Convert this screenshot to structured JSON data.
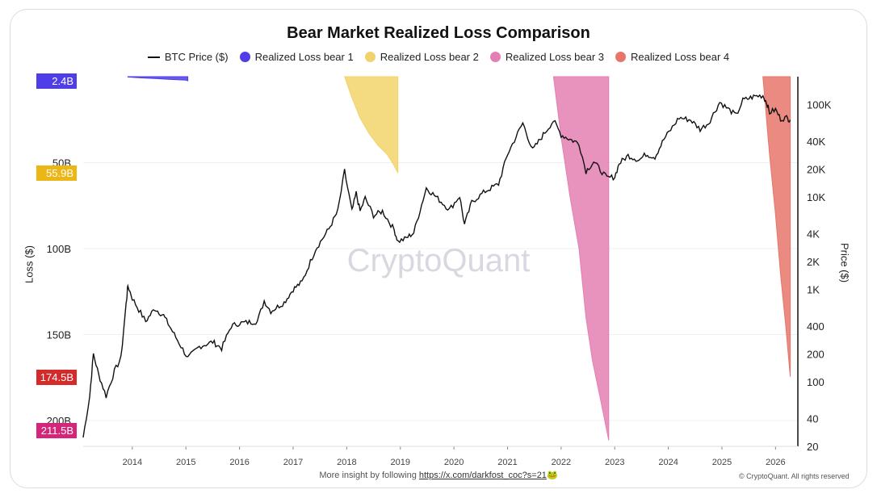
{
  "chart_data": {
    "type": "line",
    "title": "Bear Market Realized Loss Comparison",
    "legend": [
      "BTC Price ($)",
      "Realized Loss bear 1",
      "Realized Loss bear 2",
      "Realized Loss bear 3",
      "Realized Loss bear 4"
    ],
    "colors": {
      "price": "#111111",
      "bear1": "#4f3ee8",
      "bear2": "#f2d36b",
      "bear3": "#e47fb3",
      "bear4": "#e8756a"
    },
    "ylabel_left": "Loss ($)",
    "ylabel_right": "Price ($)",
    "left_ticks": [
      "50B",
      "100B",
      "150B",
      "200B"
    ],
    "left_tick_values": [
      50,
      100,
      150,
      200
    ],
    "left_ylim": [
      0,
      215
    ],
    "right_ticks": [
      "100K",
      "40K",
      "20K",
      "10K",
      "4K",
      "2K",
      "1K",
      "400",
      "200",
      "100",
      "40",
      "20"
    ],
    "right_tick_values": [
      100000,
      40000,
      20000,
      10000,
      4000,
      2000,
      1000,
      400,
      200,
      100,
      40,
      20
    ],
    "right_ylim": [
      20,
      200000
    ],
    "right_scale": "log",
    "x_ticks": [
      "2014",
      "2015",
      "2016",
      "2017",
      "2018",
      "2019",
      "2020",
      "2021",
      "2022",
      "2023",
      "2024",
      "2025",
      "2026"
    ],
    "xlim": [
      "2013-02",
      "2026-06"
    ],
    "max_tags": [
      {
        "label": "2.4B",
        "value": 2.4,
        "color": "#4f3ee8"
      },
      {
        "label": "55.9B",
        "value": 55.9,
        "color": "#ecb617"
      },
      {
        "label": "174.5B",
        "value": 174.5,
        "color": "#d42a2a"
      },
      {
        "label": "211.5B",
        "value": 211.5,
        "color": "#d4257b"
      }
    ],
    "price_series": {
      "name": "BTC Price ($)",
      "points": [
        [
          "2013-02-01",
          25
        ],
        [
          "2013-03-15",
          70
        ],
        [
          "2013-04-10",
          200
        ],
        [
          "2013-05-15",
          120
        ],
        [
          "2013-07-05",
          70
        ],
        [
          "2013-09-01",
          130
        ],
        [
          "2013-10-15",
          180
        ],
        [
          "2013-11-20",
          700
        ],
        [
          "2013-12-01",
          1100
        ],
        [
          "2014-01-01",
          800
        ],
        [
          "2014-02-15",
          600
        ],
        [
          "2014-04-01",
          450
        ],
        [
          "2014-06-01",
          620
        ],
        [
          "2014-08-01",
          520
        ],
        [
          "2014-10-01",
          350
        ],
        [
          "2015-01-14",
          180
        ],
        [
          "2015-04-01",
          240
        ],
        [
          "2015-07-01",
          270
        ],
        [
          "2015-09-01",
          230
        ],
        [
          "2015-11-05",
          400
        ],
        [
          "2016-01-01",
          430
        ],
        [
          "2016-05-01",
          450
        ],
        [
          "2016-06-17",
          750
        ],
        [
          "2016-08-01",
          580
        ],
        [
          "2016-11-01",
          720
        ],
        [
          "2017-01-01",
          1000
        ],
        [
          "2017-03-01",
          1200
        ],
        [
          "2017-06-01",
          2700
        ],
        [
          "2017-09-01",
          4500
        ],
        [
          "2017-11-01",
          7000
        ],
        [
          "2017-12-17",
          19000
        ],
        [
          "2018-02-06",
          7000
        ],
        [
          "2018-03-05",
          11000
        ],
        [
          "2018-04-01",
          7000
        ],
        [
          "2018-05-05",
          9700
        ],
        [
          "2018-07-01",
          6300
        ],
        [
          "2018-09-01",
          7000
        ],
        [
          "2018-11-20",
          4400
        ],
        [
          "2018-12-15",
          3300
        ],
        [
          "2019-02-01",
          3500
        ],
        [
          "2019-04-01",
          4100
        ],
        [
          "2019-06-26",
          12500
        ],
        [
          "2019-09-01",
          10000
        ],
        [
          "2019-12-01",
          7300
        ],
        [
          "2020-02-10",
          10200
        ],
        [
          "2020-03-12",
          5000
        ],
        [
          "2020-05-01",
          8800
        ],
        [
          "2020-08-01",
          11500
        ],
        [
          "2020-11-01",
          13800
        ],
        [
          "2021-01-01",
          29000
        ],
        [
          "2021-04-14",
          63000
        ],
        [
          "2021-06-20",
          32000
        ],
        [
          "2021-09-01",
          47000
        ],
        [
          "2021-11-10",
          67000
        ],
        [
          "2022-01-01",
          47000
        ],
        [
          "2022-03-01",
          42000
        ],
        [
          "2022-05-01",
          38000
        ],
        [
          "2022-06-18",
          19000
        ],
        [
          "2022-08-10",
          24000
        ],
        [
          "2022-11-09",
          16000
        ],
        [
          "2023-01-01",
          16500
        ],
        [
          "2023-02-01",
          23000
        ],
        [
          "2023-04-01",
          28000
        ],
        [
          "2023-06-15",
          25000
        ],
        [
          "2023-08-01",
          29000
        ],
        [
          "2023-10-01",
          27000
        ],
        [
          "2023-12-01",
          42000
        ],
        [
          "2024-03-14",
          72000
        ],
        [
          "2024-06-01",
          68000
        ],
        [
          "2024-08-05",
          54000
        ],
        [
          "2024-10-01",
          63000
        ],
        [
          "2024-12-17",
          106000
        ],
        [
          "2025-04-07",
          76000
        ],
        [
          "2025-05-22",
          111000
        ],
        [
          "2025-08-14",
          123000
        ],
        [
          "2025-10-06",
          125000
        ],
        [
          "2025-11-01",
          105000
        ],
        [
          "2025-11-21",
          82000
        ],
        [
          "2026-01-01",
          88000
        ],
        [
          "2026-02-05",
          70000
        ],
        [
          "2026-03-15",
          72000
        ],
        [
          "2026-04-10",
          68000
        ]
      ]
    },
    "loss_series": [
      {
        "name": "Realized Loss bear 1",
        "key": "bear1",
        "points": [
          [
            "2013-12-01",
            0.2
          ],
          [
            "2014-03-01",
            0.7
          ],
          [
            "2014-06-01",
            1.1
          ],
          [
            "2014-09-01",
            1.5
          ],
          [
            "2015-01-01",
            2.0
          ],
          [
            "2015-01-14",
            2.4
          ]
        ]
      },
      {
        "name": "Realized Loss bear 2",
        "key": "bear2",
        "points": [
          [
            "2017-12-17",
            0
          ],
          [
            "2018-02-05",
            12
          ],
          [
            "2018-04-01",
            24
          ],
          [
            "2018-06-01",
            33
          ],
          [
            "2018-08-01",
            40
          ],
          [
            "2018-10-01",
            45
          ],
          [
            "2018-11-15",
            51
          ],
          [
            "2018-12-15",
            55.9
          ]
        ]
      },
      {
        "name": "Realized Loss bear 3",
        "key": "bear3",
        "points": [
          [
            "2021-11-10",
            0
          ],
          [
            "2022-01-01",
            35
          ],
          [
            "2022-03-01",
            70
          ],
          [
            "2022-05-01",
            100
          ],
          [
            "2022-06-18",
            140
          ],
          [
            "2022-08-01",
            165
          ],
          [
            "2022-10-01",
            190
          ],
          [
            "2022-11-21",
            211.5
          ]
        ]
      },
      {
        "name": "Realized Loss bear 4",
        "key": "bear4",
        "points": [
          [
            "2025-10-06",
            0
          ],
          [
            "2025-11-21",
            45
          ],
          [
            "2026-01-01",
            80
          ],
          [
            "2026-02-05",
            115
          ],
          [
            "2026-03-10",
            145
          ],
          [
            "2026-04-10",
            174.5
          ]
        ]
      }
    ]
  },
  "watermark": "CryptoQuant",
  "footer": {
    "text": "More insight by following",
    "link": "https://x.com/darkfost_coc?s=21",
    "emoji": "🐸"
  },
  "copyright": "© CryptoQuant. All rights reserved"
}
